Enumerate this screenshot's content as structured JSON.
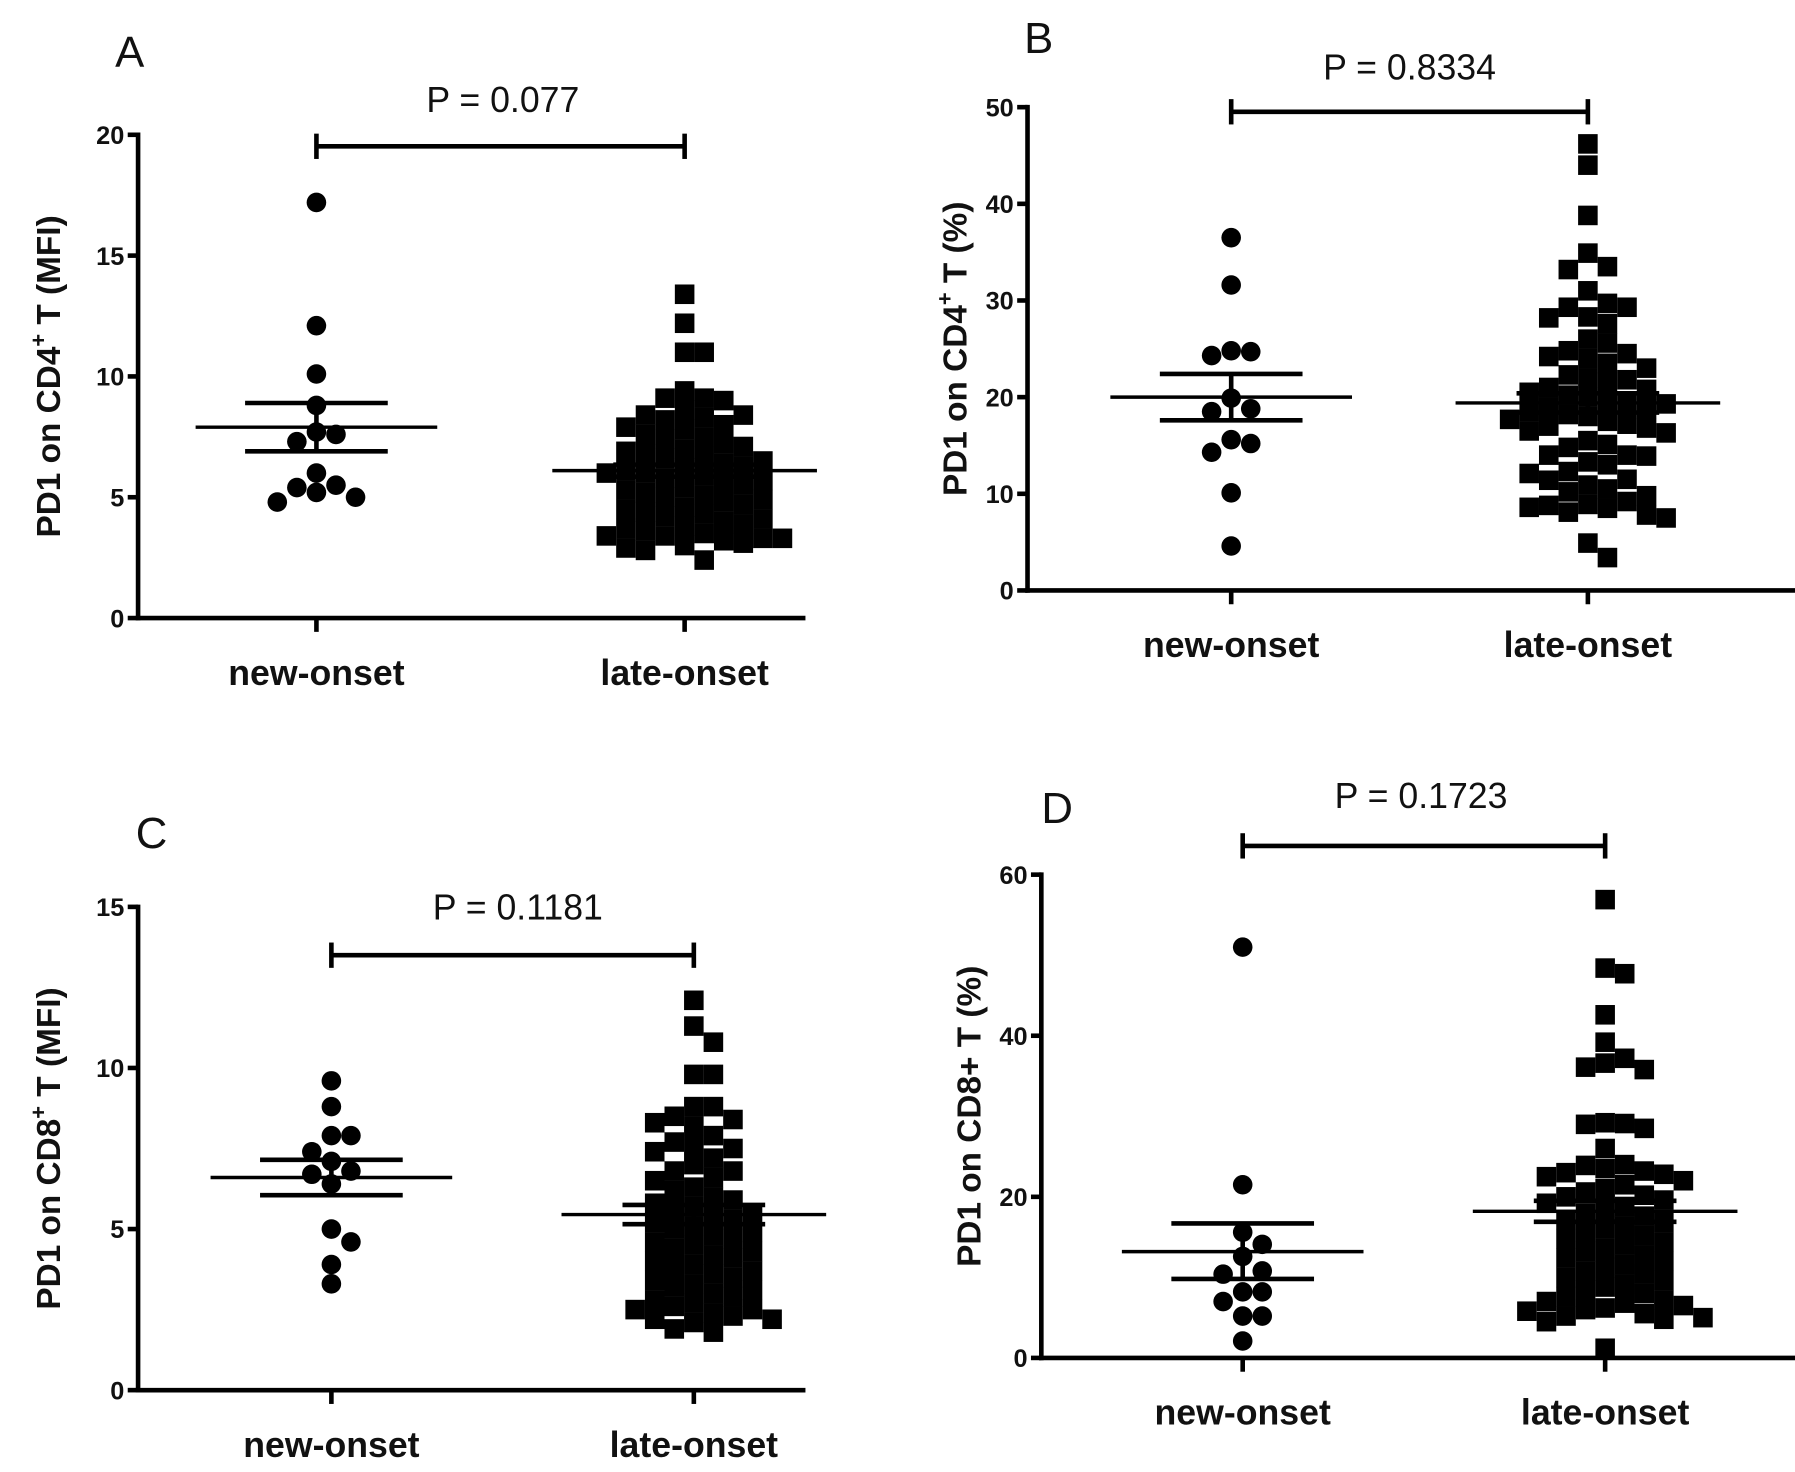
{
  "chart_data": [
    {
      "panel": "A",
      "type": "scatter",
      "subtype": "dot-plot-mean-sem",
      "ylabel_parts": [
        "PD1 on CD4",
        "+",
        " T (MFI)"
      ],
      "ylim": [
        0,
        20
      ],
      "yticks": [
        0,
        5,
        10,
        15,
        20
      ],
      "categories": [
        "new-onset",
        "late-onset"
      ],
      "p_value_label": "P = 0.077",
      "color": "#000000",
      "series": [
        {
          "name": "new-onset",
          "marker": "circle",
          "mean": 7.9,
          "sem_low": 6.9,
          "sem_high": 8.9,
          "values": [
            17.2,
            12.1,
            10.1,
            8.8,
            7.7,
            7.6,
            7.3,
            6.0,
            5.5,
            5.4,
            5.2,
            5.0,
            4.8
          ]
        },
        {
          "name": "late-onset",
          "marker": "square",
          "mean": 6.1,
          "sem_low": 5.85,
          "sem_high": 6.35,
          "values": [
            13.4,
            12.2,
            11.0,
            11.0,
            9.4,
            9.1,
            9.0,
            9.1,
            8.4,
            8.4,
            8.6,
            8.3,
            8.2,
            8.0,
            7.9,
            7.8,
            7.6,
            7.5,
            7.4,
            7.2,
            7.1,
            7.0,
            6.9,
            6.8,
            6.7,
            6.6,
            6.5,
            6.4,
            6.3,
            6.2,
            6.1,
            6.0,
            6.0,
            5.9,
            5.8,
            5.7,
            5.6,
            5.5,
            5.4,
            5.3,
            5.2,
            5.1,
            5.0,
            4.9,
            4.8,
            4.7,
            4.6,
            4.5,
            4.4,
            4.3,
            4.2,
            4.1,
            4.0,
            3.9,
            3.8,
            3.7,
            3.6,
            3.5,
            3.4,
            3.4,
            3.3,
            3.3,
            3.2,
            3.1,
            3.0,
            2.9,
            2.8,
            2.4
          ]
        }
      ]
    },
    {
      "panel": "B",
      "type": "scatter",
      "subtype": "dot-plot-mean-sem",
      "ylabel_parts": [
        "PD1 on CD4",
        "+",
        " T (%)"
      ],
      "ylim": [
        0,
        50
      ],
      "yticks": [
        0,
        10,
        20,
        30,
        40,
        50
      ],
      "categories": [
        "new-onset",
        "late-onset"
      ],
      "p_value_label": "P = 0.8334",
      "color": "#000000",
      "series": [
        {
          "name": "new-onset",
          "marker": "circle",
          "mean": 20.0,
          "sem_low": 17.6,
          "sem_high": 22.4,
          "values": [
            36.5,
            31.6,
            24.8,
            24.7,
            24.3,
            19.9,
            18.8,
            18.5,
            15.6,
            15.2,
            14.3,
            10.1,
            4.6
          ]
        },
        {
          "name": "late-onset",
          "marker": "square",
          "mean": 19.4,
          "sem_low": 18.4,
          "sem_high": 20.4,
          "values": [
            46.2,
            44.0,
            38.8,
            34.9,
            33.5,
            33.2,
            31.0,
            29.7,
            29.3,
            29.3,
            28.3,
            28.2,
            27.6,
            26.0,
            25.6,
            24.8,
            24.5,
            24.2,
            24.0,
            23.5,
            23.0,
            22.3,
            22.0,
            21.8,
            21.5,
            21.0,
            20.8,
            20.5,
            20.2,
            20.0,
            19.6,
            19.5,
            19.3,
            19.0,
            18.8,
            18.5,
            18.2,
            18.0,
            17.7,
            17.5,
            17.2,
            17.0,
            16.8,
            16.5,
            16.3,
            15.5,
            15.1,
            14.8,
            14.0,
            14.0,
            13.9,
            13.3,
            13.0,
            12.3,
            12.1,
            11.5,
            11.4,
            10.9,
            10.5,
            10.2,
            9.8,
            9.2,
            8.9,
            8.8,
            8.6,
            8.5,
            8.1,
            7.8,
            7.5,
            4.9,
            3.4
          ]
        }
      ]
    },
    {
      "panel": "C",
      "type": "scatter",
      "subtype": "dot-plot-mean-sem",
      "ylabel_parts": [
        "PD1 on CD8",
        "+",
        " T (MFI)"
      ],
      "ylim": [
        0,
        15
      ],
      "yticks": [
        0,
        5,
        10,
        15
      ],
      "categories": [
        "new-onset",
        "late-onset"
      ],
      "p_value_label": "P = 0.1181",
      "color": "#000000",
      "series": [
        {
          "name": "new-onset",
          "marker": "circle",
          "mean": 6.6,
          "sem_low": 6.05,
          "sem_high": 7.15,
          "values": [
            9.6,
            8.8,
            7.9,
            7.9,
            7.4,
            7.1,
            6.8,
            6.7,
            6.4,
            5.0,
            4.6,
            3.9,
            3.3
          ]
        },
        {
          "name": "late-onset",
          "marker": "square",
          "mean": 5.45,
          "sem_low": 5.15,
          "sem_high": 5.75,
          "values": [
            12.1,
            11.3,
            10.8,
            9.8,
            9.8,
            8.8,
            8.8,
            8.5,
            8.4,
            8.3,
            8.2,
            7.9,
            7.7,
            7.6,
            7.5,
            7.4,
            7.2,
            7.0,
            6.8,
            6.8,
            6.6,
            6.5,
            6.3,
            6.2,
            6.0,
            5.9,
            5.8,
            5.7,
            5.6,
            5.5,
            5.4,
            5.3,
            5.2,
            5.1,
            5.0,
            4.9,
            4.8,
            4.7,
            4.6,
            4.5,
            4.4,
            4.3,
            4.2,
            4.1,
            4.0,
            3.9,
            3.8,
            3.7,
            3.6,
            3.5,
            3.4,
            3.3,
            3.2,
            3.1,
            3.0,
            2.9,
            2.8,
            2.7,
            2.6,
            2.5,
            2.5,
            2.4,
            2.3,
            2.2,
            2.2,
            2.1,
            1.9,
            1.8
          ]
        }
      ]
    },
    {
      "panel": "D",
      "type": "scatter",
      "subtype": "dot-plot-mean-sem",
      "ylabel_parts": [
        "PD1 on CD8+ T (%)",
        "",
        ""
      ],
      "ylim": [
        0,
        60
      ],
      "yticks": [
        0,
        20,
        40,
        60
      ],
      "categories": [
        "new-onset",
        "late-onset"
      ],
      "p_value_label": "P = 0.1723",
      "color": "#000000",
      "series": [
        {
          "name": "new-onset",
          "marker": "circle",
          "mean": 13.2,
          "sem_low": 9.8,
          "sem_high": 16.7,
          "values": [
            51.0,
            21.5,
            15.6,
            14.1,
            12.6,
            10.8,
            10.4,
            8.2,
            8.2,
            7.0,
            5.2,
            5.2,
            2.1
          ]
        },
        {
          "name": "late-onset",
          "marker": "square",
          "mean": 18.2,
          "sem_low": 16.9,
          "sem_high": 19.5,
          "values": [
            56.9,
            48.4,
            47.7,
            42.6,
            39.2,
            37.2,
            36.6,
            36.1,
            35.8,
            29.2,
            29.1,
            29.0,
            28.5,
            26.0,
            24.0,
            23.9,
            23.5,
            23.2,
            23.0,
            22.8,
            22.5,
            22.0,
            21.5,
            21.0,
            20.6,
            20.2,
            20.0,
            19.6,
            19.2,
            18.8,
            18.4,
            18.0,
            17.6,
            17.2,
            16.8,
            16.4,
            16.0,
            15.6,
            15.2,
            14.8,
            14.4,
            14.0,
            13.6,
            13.2,
            12.8,
            12.4,
            12.0,
            11.6,
            11.2,
            10.8,
            10.4,
            10.0,
            9.6,
            9.2,
            8.8,
            8.4,
            8.0,
            7.6,
            7.2,
            7.0,
            6.8,
            6.5,
            6.2,
            6.0,
            5.8,
            5.5,
            5.2,
            5.0,
            4.8,
            4.5,
            1.2
          ]
        }
      ]
    }
  ]
}
